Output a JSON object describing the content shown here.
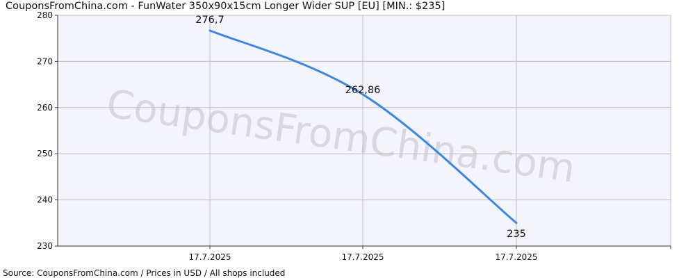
{
  "title": "CouponsFromChina.com - FunWater 350x90x15cm Longer Wider SUP [EU] [MIN.: $235]",
  "footer": "Source: CouponsFromChina.com / Prices in USD / All shops included",
  "watermark": "CouponsFromChina.com",
  "colors": {
    "line": "#3d86e0",
    "plot_background": "#f3f4fc",
    "grid": "#bfbfbf",
    "axis": "#333333"
  },
  "chart_data": {
    "type": "line",
    "title": "CouponsFromChina.com - FunWater 350x90x15cm Longer Wider SUP [EU] [MIN.: $235]",
    "xlabel": "",
    "ylabel": "",
    "x_ticks": [
      "17.7.2025",
      "17.7.2025",
      "17.7.2025"
    ],
    "ylim": [
      230,
      280
    ],
    "y_ticks": [
      230,
      240,
      250,
      260,
      270,
      280
    ],
    "grid": true,
    "legend": "none",
    "series": [
      {
        "values": [
          276.7,
          262.86,
          235
        ],
        "labels": [
          "276,7",
          "262,86",
          "235"
        ]
      }
    ]
  }
}
